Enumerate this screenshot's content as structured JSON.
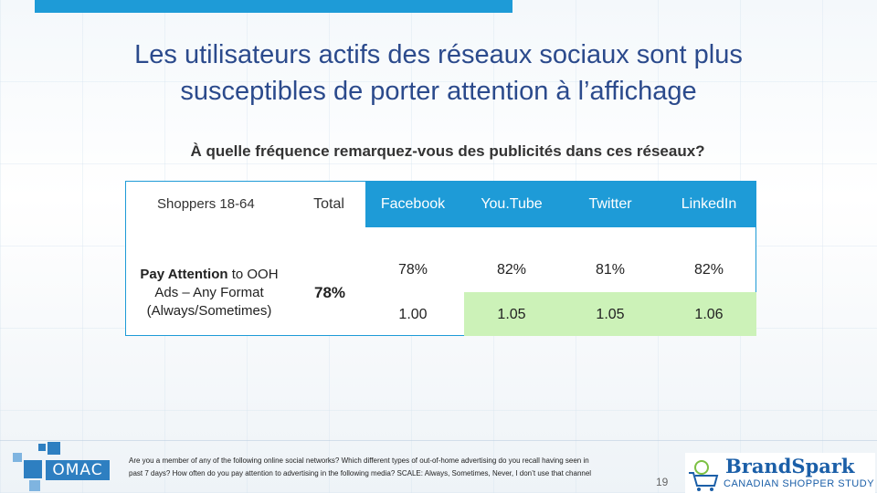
{
  "slide": {
    "title_line1": "Les utilisateurs actifs des réseaux sociaux sont plus",
    "title_line2": "susceptibles de porter attention à l’affichage",
    "question": "À quelle fréquence remarquez-vous des publicités dans ces réseaux?"
  },
  "table": {
    "header_left": "Shoppers 18-64",
    "header_total": "Total",
    "networks": [
      "Facebook",
      "You.Tube",
      "Twitter",
      "LinkedIn"
    ],
    "row_label_bold": "Pay Attention",
    "row_label_rest_1": " to OOH",
    "row_label_line2": "Ads – Any Format",
    "row_label_line3": "(Always/Sometimes)",
    "total_value": "78%",
    "percentages": [
      "78%",
      "82%",
      "81%",
      "82%"
    ],
    "indexes": [
      "1.00",
      "1.05",
      "1.05",
      "1.06"
    ],
    "highlight_color": "#ccf2b8",
    "header_color": "#1e9bd7"
  },
  "footer": {
    "note_line1": "Are you a member of any of the following online social networks? Which different types of out-of-home advertising do you recall having seen in",
    "note_line2": "past 7 days? How often do you pay attention to advertising in the following media? SCALE: Always, Sometimes, Never, I don’t use that channel",
    "page_number": "19",
    "logo_left": "OMAC",
    "logo_right_name": "BrandSpark",
    "logo_right_sub": "CANADIAN SHOPPER STUDY"
  }
}
